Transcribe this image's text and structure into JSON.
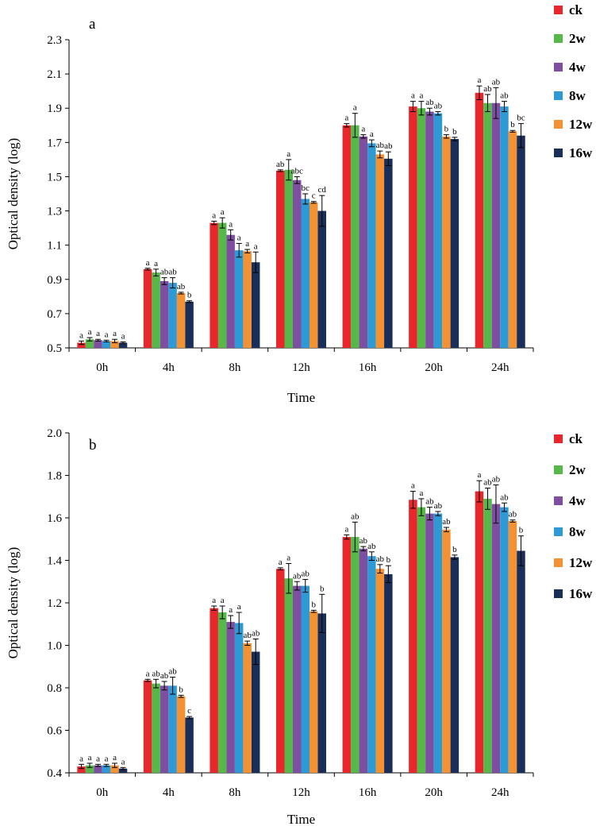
{
  "chart_data": [
    {
      "type": "bar",
      "panel_label": "a",
      "xlabel": "Time",
      "ylabel": "Optical density (log)",
      "categories": [
        "0h",
        "4h",
        "8h",
        "12h",
        "16h",
        "20h",
        "24h"
      ],
      "ylim": [
        0.5,
        2.3
      ],
      "yticks": [
        0.5,
        0.7,
        0.9,
        1.1,
        1.3,
        1.5,
        1.7,
        1.9,
        2.1,
        2.3
      ],
      "ytick_decimals": 1,
      "legend_position": "right",
      "series": [
        {
          "name": "ck",
          "color": "#e8262b",
          "values": [
            0.53,
            0.96,
            1.23,
            1.535,
            1.8,
            1.91,
            1.99
          ],
          "errors": [
            0.01,
            0.005,
            0.01,
            0.005,
            0.01,
            0.03,
            0.04
          ],
          "letters": [
            "a",
            "a",
            "a",
            "ab",
            "a",
            "a",
            "a"
          ]
        },
        {
          "name": "2w",
          "color": "#55b848",
          "values": [
            0.55,
            0.94,
            1.23,
            1.54,
            1.8,
            1.9,
            1.93
          ],
          "errors": [
            0.01,
            0.02,
            0.03,
            0.06,
            0.07,
            0.04,
            0.05
          ],
          "letters": [
            "a",
            "a",
            "a",
            "a",
            "a",
            "a",
            "ab"
          ]
        },
        {
          "name": "4w",
          "color": "#7e4fa0",
          "values": [
            0.545,
            0.89,
            1.16,
            1.48,
            1.735,
            1.88,
            1.93
          ],
          "errors": [
            0.005,
            0.02,
            0.03,
            0.02,
            0.01,
            0.02,
            0.09
          ],
          "letters": [
            "a",
            "ab",
            "a",
            "abc",
            "a",
            "ab",
            "ab"
          ]
        },
        {
          "name": "8w",
          "color": "#2e9ad5",
          "values": [
            0.54,
            0.88,
            1.07,
            1.37,
            1.695,
            1.87,
            1.91
          ],
          "errors": [
            0.005,
            0.03,
            0.04,
            0.03,
            0.02,
            0.01,
            0.03
          ],
          "letters": [
            "a",
            "ab",
            "a",
            "bc",
            "a",
            "ab",
            "ab"
          ]
        },
        {
          "name": "12w",
          "color": "#f39133",
          "values": [
            0.54,
            0.82,
            1.065,
            1.35,
            1.63,
            1.735,
            1.765
          ],
          "errors": [
            0.01,
            0.005,
            0.01,
            0.005,
            0.02,
            0.01,
            0.005
          ],
          "letters": [
            "a",
            "ab",
            "a",
            "c",
            "ab",
            "b",
            "b"
          ]
        },
        {
          "name": "16w",
          "color": "#1a2e5a",
          "values": [
            0.53,
            0.77,
            1.0,
            1.3,
            1.605,
            1.72,
            1.74
          ],
          "errors": [
            0.005,
            0.005,
            0.06,
            0.09,
            0.04,
            0.01,
            0.07
          ],
          "letters": [
            "a",
            "b",
            "a",
            "cd",
            "ab",
            "b",
            "bc"
          ]
        }
      ]
    },
    {
      "type": "bar",
      "panel_label": "b",
      "xlabel": "Time",
      "ylabel": "Optical density (log)",
      "categories": [
        "0h",
        "4h",
        "8h",
        "12h",
        "16h",
        "20h",
        "24h"
      ],
      "ylim": [
        0.4,
        2.0
      ],
      "yticks": [
        0.4,
        0.6,
        0.8,
        1.0,
        1.2,
        1.4,
        1.6,
        1.8,
        2.0
      ],
      "ytick_decimals": 1,
      "legend_position": "right",
      "series": [
        {
          "name": "ck",
          "color": "#e8262b",
          "values": [
            0.43,
            0.835,
            1.175,
            1.36,
            1.51,
            1.685,
            1.725
          ],
          "errors": [
            0.01,
            0.005,
            0.01,
            0.005,
            0.01,
            0.04,
            0.05
          ],
          "letters": [
            "a",
            "a",
            "a",
            "a",
            "a",
            "a",
            "a"
          ]
        },
        {
          "name": "2w",
          "color": "#55b848",
          "values": [
            0.435,
            0.82,
            1.155,
            1.315,
            1.51,
            1.65,
            1.69
          ],
          "errors": [
            0.01,
            0.02,
            0.03,
            0.07,
            0.07,
            0.04,
            0.05
          ],
          "letters": [
            "a",
            "ab",
            "a",
            "a",
            "ab",
            "a",
            "ab"
          ]
        },
        {
          "name": "4w",
          "color": "#7e4fa0",
          "values": [
            0.435,
            0.81,
            1.11,
            1.28,
            1.455,
            1.62,
            1.665
          ],
          "errors": [
            0.005,
            0.02,
            0.03,
            0.02,
            0.01,
            0.03,
            0.09
          ],
          "letters": [
            "a",
            "ab",
            "a",
            "ab",
            "ab",
            "ab",
            "ab"
          ]
        },
        {
          "name": "8w",
          "color": "#2e9ad5",
          "values": [
            0.435,
            0.81,
            1.105,
            1.28,
            1.42,
            1.62,
            1.65
          ],
          "errors": [
            0.005,
            0.04,
            0.05,
            0.03,
            0.02,
            0.01,
            0.02
          ],
          "letters": [
            "a",
            "ab",
            "a",
            "ab",
            "ab",
            "ab",
            "ab"
          ]
        },
        {
          "name": "12w",
          "color": "#f39133",
          "values": [
            0.435,
            0.76,
            1.01,
            1.16,
            1.36,
            1.545,
            1.585
          ],
          "errors": [
            0.01,
            0.005,
            0.01,
            0.005,
            0.02,
            0.01,
            0.005
          ],
          "letters": [
            "a",
            "b",
            "ab",
            "b",
            "ab",
            "ab",
            "ab"
          ]
        },
        {
          "name": "16w",
          "color": "#1a2e5a",
          "values": [
            0.42,
            0.66,
            0.97,
            1.15,
            1.335,
            1.415,
            1.445
          ],
          "errors": [
            0.005,
            0.005,
            0.06,
            0.09,
            0.04,
            0.01,
            0.07
          ],
          "letters": [
            "a",
            "c",
            "ab",
            "b",
            "b",
            "b",
            "b"
          ]
        }
      ]
    }
  ]
}
